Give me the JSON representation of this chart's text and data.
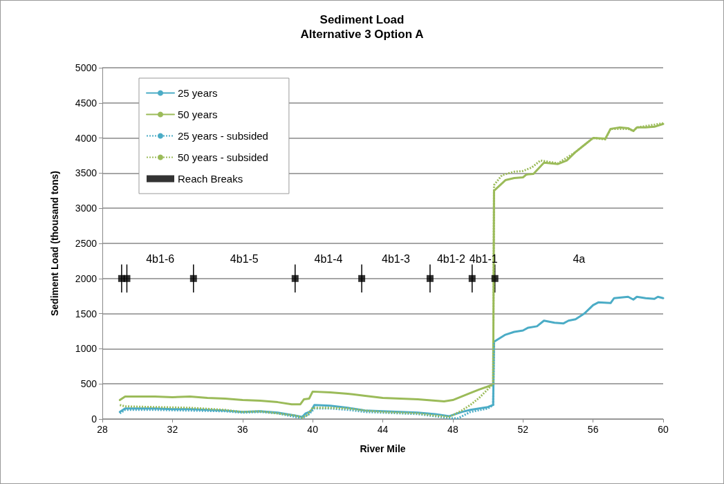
{
  "chart_data": {
    "type": "line",
    "title": "Sediment Load",
    "subtitle": "Alternative 3 Option A",
    "xlabel": "River Mile",
    "ylabel": "Sediment Load (thousand tons)",
    "xlim": [
      28,
      60
    ],
    "xticks": [
      28,
      32,
      36,
      40,
      44,
      48,
      52,
      56,
      60
    ],
    "ylim": [
      0,
      5000
    ],
    "yticks": [
      0,
      500,
      1000,
      1500,
      2000,
      2500,
      3000,
      3500,
      4000,
      4500,
      5000
    ],
    "grid": "y",
    "legend": "top left",
    "marker": "none",
    "series": [
      {
        "name": "25 years",
        "color": "#4bacc6",
        "line_style": "solid",
        "x": [
          29.0,
          29.3,
          31,
          32,
          33,
          34,
          35,
          36,
          37,
          38,
          39,
          39.4,
          39.6,
          39.9,
          40.1,
          41,
          42,
          43,
          44,
          45,
          46,
          47,
          47.8,
          48.5,
          49,
          50,
          50.3,
          50.35,
          51,
          51.5,
          52,
          52.3,
          52.8,
          53.2,
          53.8,
          54.3,
          54.6,
          55,
          55.5,
          56,
          56.3,
          57,
          57.2,
          58,
          58.3,
          58.5,
          59,
          59.5,
          59.7,
          60
        ],
        "values": [
          100,
          150,
          150,
          140,
          140,
          130,
          120,
          100,
          110,
          90,
          50,
          30,
          80,
          110,
          200,
          190,
          160,
          120,
          110,
          100,
          90,
          70,
          40,
          100,
          130,
          170,
          200,
          1100,
          1200,
          1240,
          1260,
          1300,
          1320,
          1400,
          1370,
          1360,
          1400,
          1420,
          1500,
          1620,
          1660,
          1650,
          1720,
          1740,
          1700,
          1740,
          1720,
          1710,
          1740,
          1720
        ]
      },
      {
        "name": "50 years",
        "color": "#9bbb59",
        "line_style": "solid",
        "x": [
          29.0,
          29.3,
          31,
          32,
          33,
          34,
          35,
          36,
          37,
          38,
          38.8,
          39.3,
          39.5,
          39.8,
          40.0,
          41,
          42,
          43,
          44,
          45,
          46,
          47,
          47.5,
          48,
          49,
          49.5,
          50.3,
          50.35,
          51,
          51.5,
          52,
          52.2,
          52.6,
          53.2,
          54,
          54.5,
          55,
          55.5,
          56,
          56.7,
          57,
          57.5,
          58,
          58.3,
          58.5,
          59,
          59.5,
          60
        ],
        "values": [
          270,
          320,
          320,
          310,
          320,
          300,
          290,
          270,
          260,
          240,
          210,
          210,
          280,
          290,
          390,
          380,
          360,
          330,
          300,
          290,
          280,
          260,
          250,
          270,
          370,
          420,
          490,
          3250,
          3400,
          3430,
          3440,
          3480,
          3490,
          3650,
          3630,
          3680,
          3800,
          3900,
          4000,
          3990,
          4130,
          4150,
          4140,
          4100,
          4150,
          4150,
          4160,
          4200
        ]
      },
      {
        "name": "25 years - subsided",
        "color": "#4bacc6",
        "line_style": "dotted",
        "x": [
          29.0,
          29.3,
          31,
          33,
          35,
          36,
          37,
          38,
          39,
          39.4,
          39.8,
          40.1,
          41,
          42,
          43,
          44,
          45,
          46,
          47,
          47.8,
          48.3,
          49,
          50,
          50.3,
          50.35
        ],
        "values": [
          80,
          130,
          130,
          120,
          110,
          90,
          100,
          80,
          30,
          10,
          70,
          150,
          150,
          130,
          100,
          90,
          80,
          70,
          40,
          10,
          10,
          100,
          150,
          200,
          1100
        ]
      },
      {
        "name": "50 years - subsided",
        "color": "#9bbb59",
        "line_style": "dotted",
        "x": [
          29.0,
          29.3,
          31,
          33,
          35,
          36,
          37,
          38,
          39,
          39.4,
          39.7,
          40.0,
          41,
          42,
          43,
          44,
          45,
          46,
          47,
          47.8,
          48.5,
          49,
          49.5,
          50.3,
          50.35,
          50.8,
          51.5,
          52,
          52.5,
          53,
          54,
          55,
          56,
          56.7,
          57,
          58,
          58.3,
          58.5,
          60
        ],
        "values": [
          200,
          180,
          170,
          160,
          130,
          100,
          110,
          80,
          50,
          20,
          60,
          160,
          160,
          150,
          120,
          100,
          90,
          80,
          50,
          30,
          120,
          200,
          300,
          500,
          3330,
          3470,
          3520,
          3530,
          3580,
          3680,
          3640,
          3800,
          4000,
          3980,
          4130,
          4130,
          4100,
          4150,
          4210
        ]
      },
      {
        "name": "Reach Breaks",
        "type": "scatter",
        "color": "#000000",
        "marker": "square",
        "x": [
          29.1,
          29.4,
          33.2,
          39.0,
          42.8,
          46.7,
          49.1,
          50.4
        ],
        "values": [
          2000,
          2000,
          2000,
          2000,
          2000,
          2000,
          2000,
          2000
        ],
        "errors": [
          200,
          200,
          200,
          200,
          200,
          200,
          200,
          200
        ]
      }
    ],
    "annotations": [
      "4b1-6",
      "4b1-5",
      "4b1-4",
      "4b1-3",
      "4b1-2",
      "4b1-1",
      "4a"
    ]
  }
}
